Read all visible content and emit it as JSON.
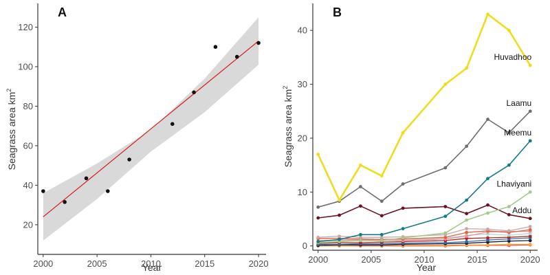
{
  "chart_data": [
    {
      "panel": "A",
      "type": "scatter",
      "xlabel": "Year",
      "ylabel": "Seagrass area km",
      "ylabel_superscript": "2",
      "xlim": [
        1999.5,
        2020.7
      ],
      "ylim": [
        5,
        132
      ],
      "xticks": [
        "2000",
        "2005",
        "2010",
        "2015",
        "2020"
      ],
      "yticks": [
        "20",
        "40",
        "60",
        "80",
        "100",
        "120"
      ],
      "points": [
        {
          "x": 2000,
          "y": 37
        },
        {
          "x": 2002,
          "y": 31.5
        },
        {
          "x": 2004,
          "y": 43.5
        },
        {
          "x": 2006,
          "y": 37
        },
        {
          "x": 2008,
          "y": 53
        },
        {
          "x": 2012,
          "y": 71
        },
        {
          "x": 2014,
          "y": 87
        },
        {
          "x": 2016,
          "y": 110
        },
        {
          "x": 2018,
          "y": 105
        },
        {
          "x": 2020,
          "y": 112
        }
      ],
      "fit_line": {
        "x": [
          2000,
          2020
        ],
        "y": [
          24,
          113
        ],
        "color": "#d62728"
      },
      "confidence_band": {
        "x": [
          2000,
          2005,
          2010,
          2015,
          2020
        ],
        "lower": [
          12,
          33,
          57,
          77,
          101
        ],
        "upper": [
          36,
          51,
          68,
          94,
          125
        ],
        "color": "#d9d9d9"
      },
      "point_color": "#111111",
      "grid": false
    },
    {
      "panel": "B",
      "type": "line",
      "xlabel": "Year",
      "ylabel": "Seagrass area km",
      "ylabel_superscript": "2",
      "xlim": [
        1999.5,
        2020.7
      ],
      "ylim": [
        -0.8,
        45
      ],
      "x": [
        2000,
        2002,
        2004,
        2006,
        2008,
        2012,
        2014,
        2016,
        2018,
        2020
      ],
      "xticks": [
        "2000",
        "2005",
        "2010",
        "2015",
        "2020"
      ],
      "yticks": [
        "0",
        "10",
        "20",
        "30",
        "40"
      ],
      "series": [
        {
          "name": "Huvadhoo",
          "color": "#f0dc1e",
          "width": 2.6,
          "values": [
            17,
            8.5,
            15,
            13,
            21,
            30,
            33,
            43,
            40,
            33.5
          ],
          "label_pos": "end-above"
        },
        {
          "name": "Laamu",
          "color": "#6e6e6e",
          "width": 1.6,
          "values": [
            7.2,
            8.3,
            11,
            8.3,
            11.5,
            14.5,
            18.5,
            23.5,
            21,
            25
          ],
          "label_pos": "end-above"
        },
        {
          "name": "Meemu",
          "color": "#137a87",
          "width": 1.6,
          "values": [
            0.8,
            1.2,
            2.1,
            2.1,
            3.2,
            5.5,
            8.5,
            12.5,
            15,
            19.5
          ],
          "label_pos": "end-above"
        },
        {
          "name": "Lhaviyani",
          "color": "#a4c98a",
          "width": 1.6,
          "values": [
            0.6,
            0.8,
            1.0,
            1.0,
            1.5,
            2.4,
            4.8,
            6.1,
            7.3,
            10
          ],
          "label_pos": "end-above"
        },
        {
          "name": "Addu",
          "color": "#6b1221",
          "width": 1.6,
          "values": [
            5.2,
            5.7,
            7.4,
            5.6,
            7.0,
            7.3,
            6.0,
            7.6,
            5.8,
            5.1
          ],
          "label_pos": "end-above"
        },
        {
          "name": "",
          "color": "#c7a6a6",
          "width": 1.3,
          "values": [
            1.6,
            1.8,
            1.6,
            1.6,
            1.7,
            2.1,
            3.2,
            3.1,
            2.8,
            3.6
          ],
          "label_pos": "none"
        },
        {
          "name": "",
          "color": "#e06040",
          "width": 1.3,
          "values": [
            1.4,
            1.4,
            1.3,
            1.2,
            1.3,
            1.6,
            2.5,
            2.8,
            2.5,
            3.0
          ],
          "label_pos": "none"
        },
        {
          "name": "",
          "color": "#f08f9c",
          "width": 1.3,
          "values": [
            1.0,
            1.1,
            1.2,
            1.1,
            1.0,
            1.3,
            1.8,
            2.6,
            2.7,
            2.7
          ],
          "label_pos": "none"
        },
        {
          "name": "",
          "color": "#b0d9c9",
          "width": 1.3,
          "values": [
            0.9,
            1.0,
            1.1,
            1.0,
            1.2,
            1.4,
            2.0,
            2.2,
            2.0,
            2.3
          ],
          "label_pos": "none"
        },
        {
          "name": "",
          "color": "#b22222",
          "width": 1.3,
          "values": [
            0.5,
            0.6,
            0.6,
            0.7,
            0.8,
            1.0,
            1.4,
            1.5,
            1.6,
            1.8
          ],
          "label_pos": "none"
        },
        {
          "name": "",
          "color": "#2f6f9f",
          "width": 1.3,
          "values": [
            0.3,
            0.3,
            0.4,
            0.4,
            0.5,
            0.6,
            0.8,
            1.1,
            1.3,
            1.5
          ],
          "label_pos": "none"
        },
        {
          "name": "",
          "color": "#1a1a4a",
          "width": 1.3,
          "values": [
            0.1,
            0.2,
            0.2,
            0.2,
            0.3,
            0.4,
            0.5,
            0.7,
            0.9,
            1.0
          ],
          "label_pos": "none"
        },
        {
          "name": "",
          "color": "#f2a83b",
          "width": 1.3,
          "values": [
            0.0,
            0.0,
            0.1,
            0.1,
            0.1,
            0.1,
            0.2,
            0.2,
            0.3,
            0.3
          ],
          "label_pos": "none"
        },
        {
          "name": "",
          "color": "#e6553a",
          "width": 1.3,
          "values": [
            0.0,
            0.0,
            0.0,
            0.0,
            0.0,
            0.0,
            0.1,
            0.1,
            0.1,
            0.2
          ],
          "label_pos": "none"
        }
      ],
      "grid": false
    }
  ]
}
